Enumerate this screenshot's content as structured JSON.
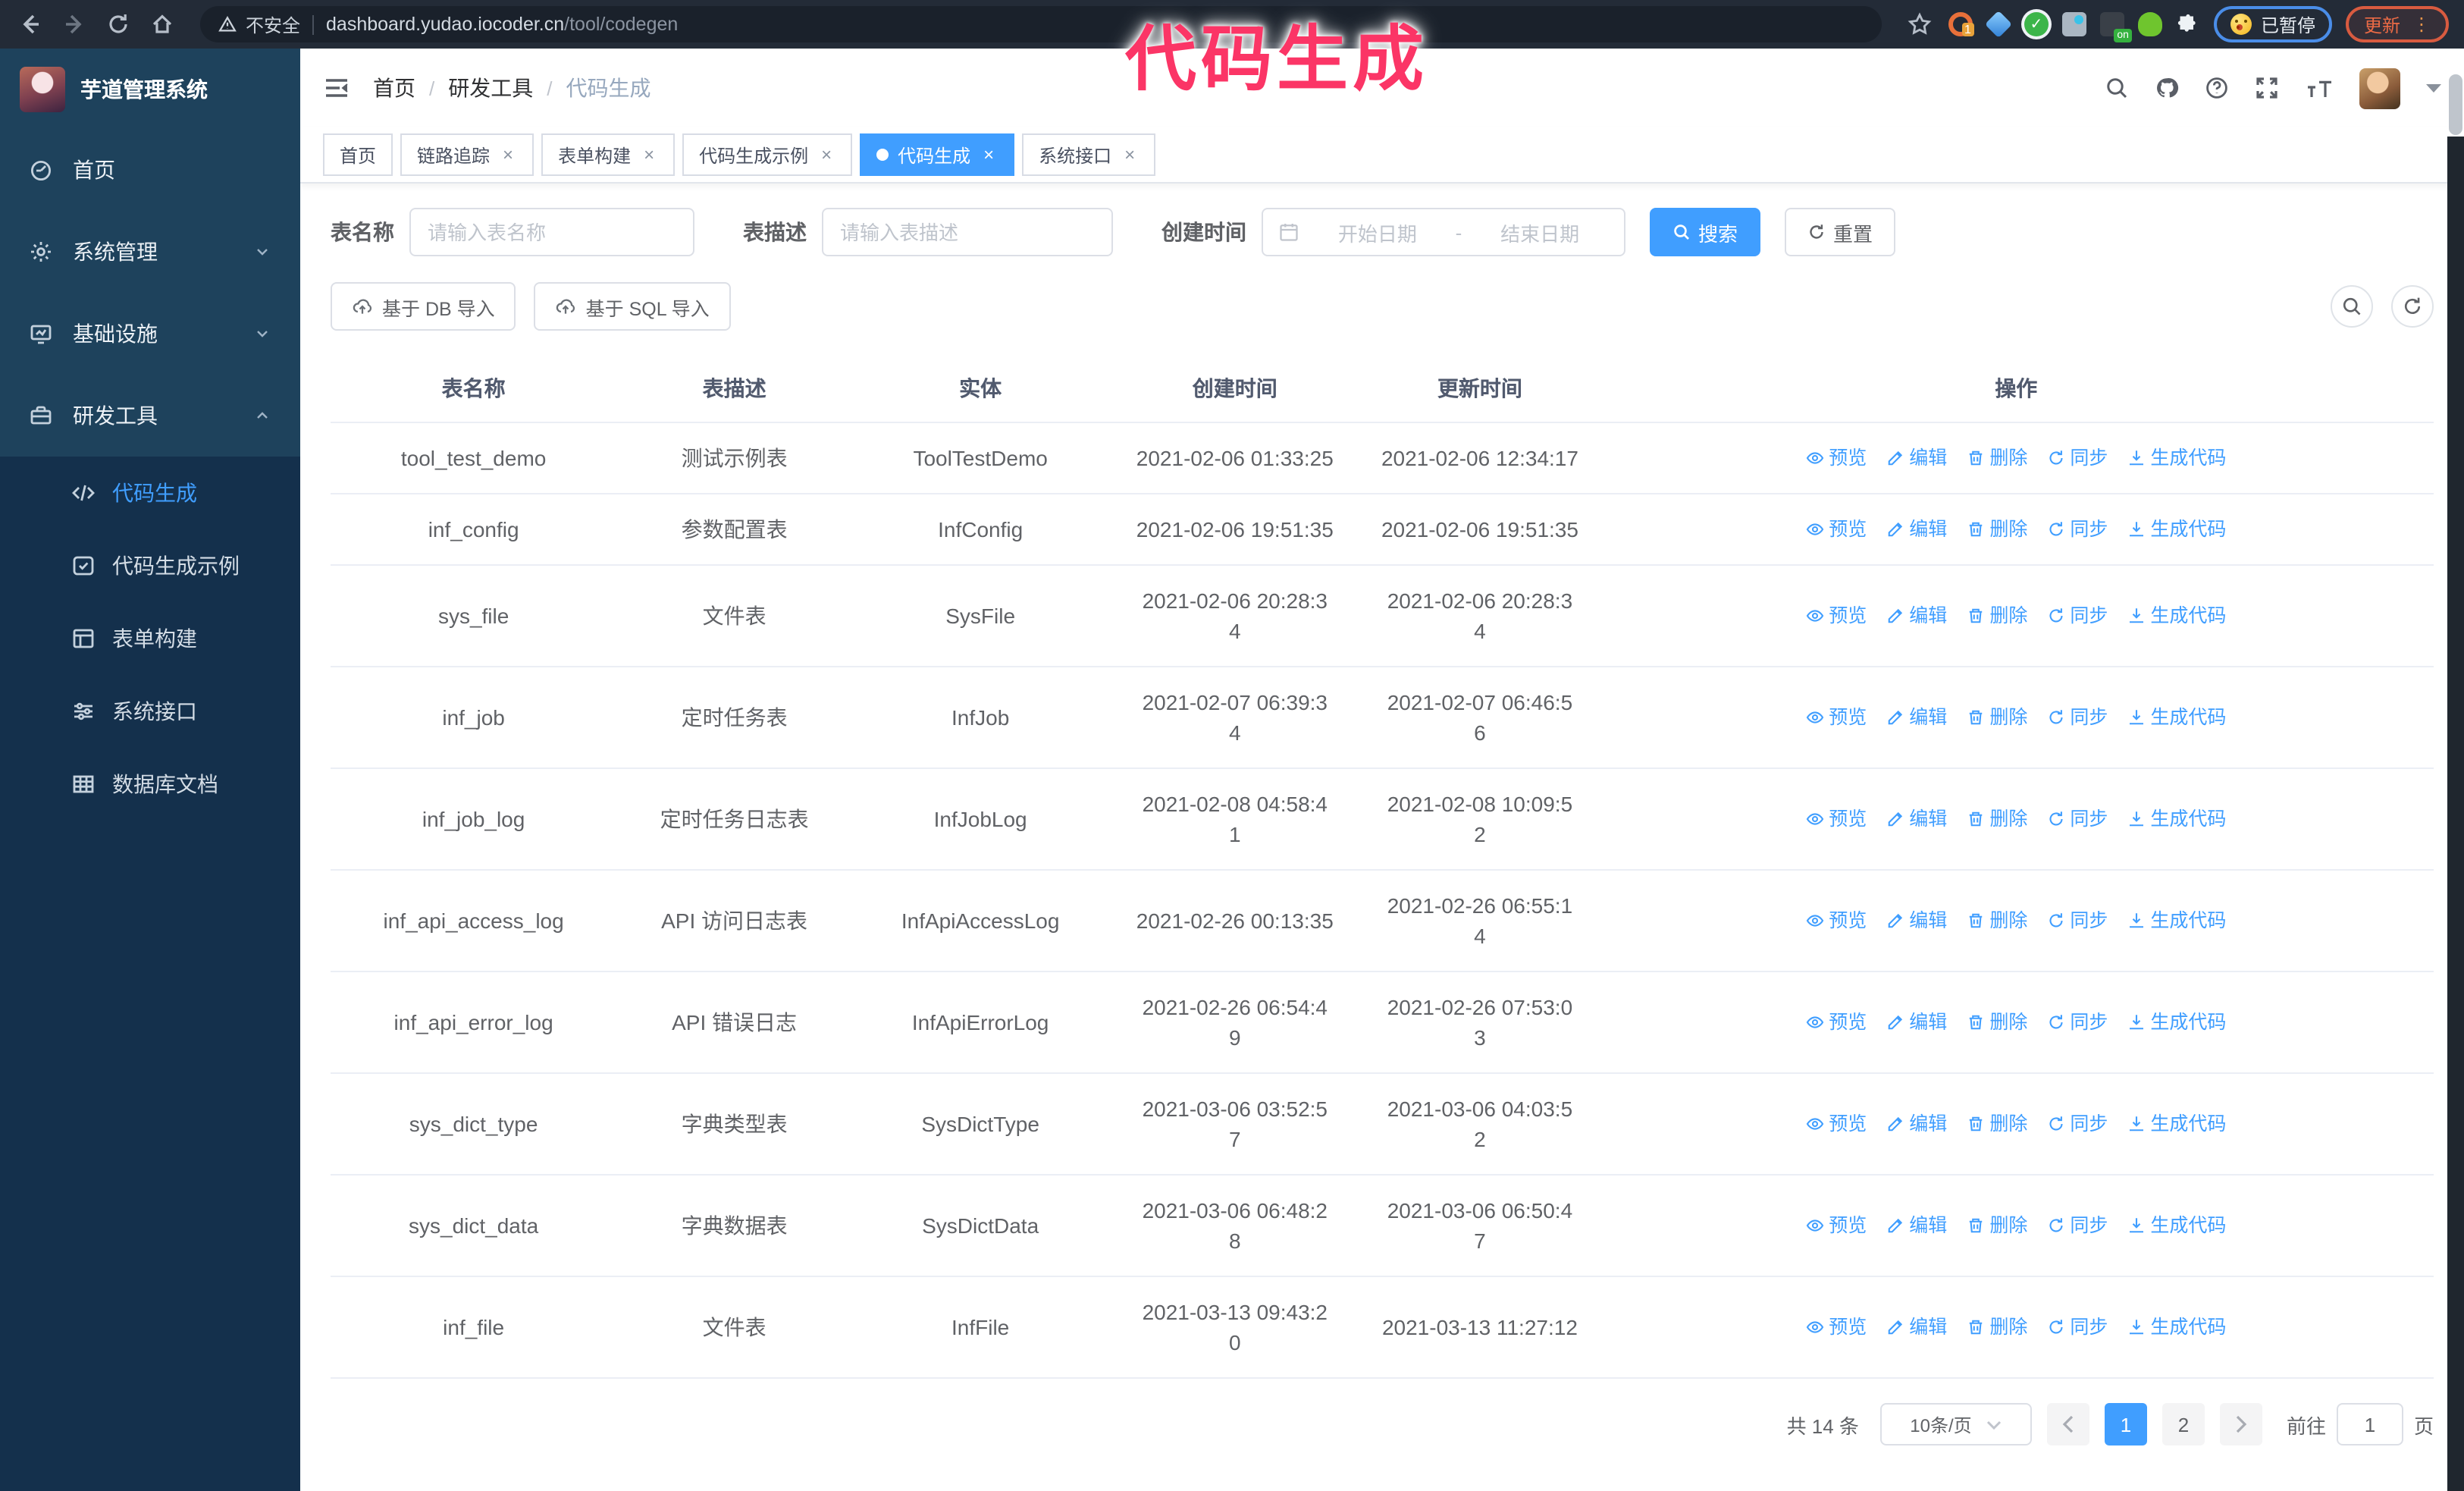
{
  "browser": {
    "security_warning": "不安全",
    "url_domain": "dashboard.yudao.iocoder.cn",
    "url_path": "/tool/codegen",
    "extension_badge": "1",
    "extension_on_badge": "on",
    "paused_badge": "已暂停",
    "update_button": "更新"
  },
  "overlay": {
    "title": "代码生成",
    "color": "#fb3566"
  },
  "sidebar": {
    "logo_title": "芋道管理系统",
    "items": [
      {
        "label": "首页",
        "icon": "dashboard-icon",
        "chevron": null
      },
      {
        "label": "系统管理",
        "icon": "gear-icon",
        "chevron": "down"
      },
      {
        "label": "基础设施",
        "icon": "infrastructure-icon",
        "chevron": "down"
      },
      {
        "label": "研发工具",
        "icon": "toolbox-icon",
        "chevron": "up"
      }
    ],
    "submenu": [
      {
        "label": "代码生成",
        "icon": "code-icon",
        "active": true
      },
      {
        "label": "代码生成示例",
        "icon": "example-icon",
        "active": false
      },
      {
        "label": "表单构建",
        "icon": "form-icon",
        "active": false
      },
      {
        "label": "系统接口",
        "icon": "api-icon",
        "active": false
      },
      {
        "label": "数据库文档",
        "icon": "database-icon",
        "active": false
      }
    ]
  },
  "header": {
    "breadcrumb": [
      "首页",
      "研发工具",
      "代码生成"
    ],
    "breadcrumb_separator": "/"
  },
  "tabs": [
    {
      "label": "首页",
      "closable": false,
      "active": false
    },
    {
      "label": "链路追踪",
      "closable": true,
      "active": false
    },
    {
      "label": "表单构建",
      "closable": true,
      "active": false
    },
    {
      "label": "代码生成示例",
      "closable": true,
      "active": false
    },
    {
      "label": "代码生成",
      "closable": true,
      "active": true
    },
    {
      "label": "系统接口",
      "closable": true,
      "active": false
    }
  ],
  "filters": {
    "table_name_label": "表名称",
    "table_name_placeholder": "请输入表名称",
    "table_desc_label": "表描述",
    "table_desc_placeholder": "请输入表描述",
    "create_time_label": "创建时间",
    "date_start_placeholder": "开始日期",
    "date_separator": "-",
    "date_end_placeholder": "结束日期",
    "search_label": "搜索",
    "reset_label": "重置"
  },
  "toolbar": {
    "import_db_label": "基于 DB 导入",
    "import_sql_label": "基于 SQL 导入"
  },
  "table": {
    "columns": [
      "表名称",
      "表描述",
      "实体",
      "创建时间",
      "更新时间",
      "操作"
    ],
    "actions": [
      "预览",
      "编辑",
      "删除",
      "同步",
      "生成代码"
    ],
    "rows": [
      {
        "name": "tool_test_demo",
        "desc": "测试示例表",
        "entity": "ToolTestDemo",
        "created": "2021-02-06 01:33:25",
        "updated": "2021-02-06 12:34:17"
      },
      {
        "name": "inf_config",
        "desc": "参数配置表",
        "entity": "InfConfig",
        "created": "2021-02-06 19:51:35",
        "updated": "2021-02-06 19:51:35"
      },
      {
        "name": "sys_file",
        "desc": "文件表",
        "entity": "SysFile",
        "created": "2021-02-06 20:28:3\n4",
        "updated": "2021-02-06 20:28:3\n4"
      },
      {
        "name": "inf_job",
        "desc": "定时任务表",
        "entity": "InfJob",
        "created": "2021-02-07 06:39:3\n4",
        "updated": "2021-02-07 06:46:5\n6"
      },
      {
        "name": "inf_job_log",
        "desc": "定时任务日志表",
        "entity": "InfJobLog",
        "created": "2021-02-08 04:58:4\n1",
        "updated": "2021-02-08 10:09:5\n2"
      },
      {
        "name": "inf_api_access_log",
        "desc": "API 访问日志表",
        "entity": "InfApiAccessLog",
        "created": "2021-02-26 00:13:35",
        "updated": "2021-02-26 06:55:1\n4"
      },
      {
        "name": "inf_api_error_log",
        "desc": "API 错误日志",
        "entity": "InfApiErrorLog",
        "created": "2021-02-26 06:54:4\n9",
        "updated": "2021-02-26 07:53:0\n3"
      },
      {
        "name": "sys_dict_type",
        "desc": "字典类型表",
        "entity": "SysDictType",
        "created": "2021-03-06 03:52:5\n7",
        "updated": "2021-03-06 04:03:5\n2"
      },
      {
        "name": "sys_dict_data",
        "desc": "字典数据表",
        "entity": "SysDictData",
        "created": "2021-03-06 06:48:2\n8",
        "updated": "2021-03-06 06:50:4\n7"
      },
      {
        "name": "inf_file",
        "desc": "文件表",
        "entity": "InfFile",
        "created": "2021-03-13 09:43:2\n0",
        "updated": "2021-03-13 11:27:12"
      }
    ]
  },
  "pagination": {
    "total": "共 14 条",
    "page_size": "10条/页",
    "pages": [
      "1",
      "2"
    ],
    "active_page": "1",
    "goto_label": "前往",
    "goto_value": "1",
    "goto_suffix": "页"
  }
}
